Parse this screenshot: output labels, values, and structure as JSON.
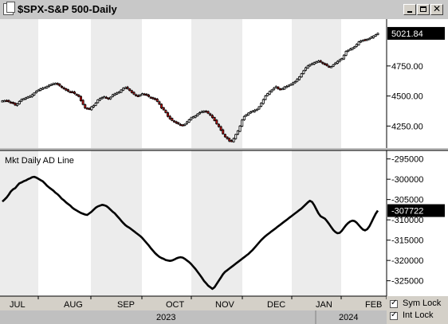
{
  "window": {
    "title": "$SPX-S&P 500-Daily",
    "buttons": [
      "minimize",
      "maximize",
      "close"
    ]
  },
  "chart_data": [
    {
      "type": "candlestick",
      "title": "$SPX-S&P 500-Daily",
      "last_value": "5021.84",
      "ytick_labels": [
        "4250.00",
        "4500.00",
        "4750.00"
      ],
      "ylim": [
        4080,
        5100
      ],
      "grid": false,
      "close_series": [
        4460,
        4462,
        4458,
        4452,
        4448,
        4438,
        4425,
        4435,
        4455,
        4470,
        4478,
        4485,
        4492,
        4498,
        4510,
        4525,
        4540,
        4550,
        4560,
        4565,
        4572,
        4580,
        4590,
        4596,
        4602,
        4606,
        4596,
        4585,
        4570,
        4560,
        4548,
        4540,
        4536,
        4530,
        4520,
        4510,
        4495,
        4460,
        4430,
        4400,
        4395,
        4390,
        4410,
        4420,
        4440,
        4468,
        4480,
        4488,
        4494,
        4485,
        4475,
        4490,
        4510,
        4518,
        4525,
        4535,
        4550,
        4565,
        4570,
        4562,
        4545,
        4528,
        4515,
        4505,
        4500,
        4510,
        4520,
        4515,
        4505,
        4495,
        4488,
        4478,
        4470,
        4455,
        4432,
        4400,
        4385,
        4362,
        4330,
        4310,
        4296,
        4286,
        4274,
        4268,
        4262,
        4255,
        4265,
        4285,
        4302,
        4318,
        4328,
        4336,
        4350,
        4362,
        4370,
        4375,
        4368,
        4356,
        4340,
        4320,
        4295,
        4268,
        4245,
        4215,
        4185,
        4160,
        4145,
        4125,
        4122,
        4145,
        4180,
        4210,
        4250,
        4300,
        4330,
        4345,
        4358,
        4368,
        4375,
        4382,
        4390,
        4410,
        4440,
        4470,
        4500,
        4520,
        4538,
        4550,
        4565,
        4578,
        4560,
        4558,
        4562,
        4575,
        4580,
        4590,
        4598,
        4610,
        4620,
        4640,
        4660,
        4685,
        4710,
        4735,
        4750,
        4762,
        4770,
        4778,
        4784,
        4790,
        4783,
        4770,
        4762,
        4752,
        4744,
        4745,
        4760,
        4775,
        4788,
        4800,
        4812,
        4840,
        4872,
        4880,
        4890,
        4900,
        4910,
        4930,
        4950,
        4958,
        4965,
        4968,
        4972,
        4979,
        4990,
        5000,
        5010,
        5021
      ],
      "down_days_sample": "red candles mark down closes"
    },
    {
      "type": "line",
      "title": "Mkt Daily AD Line",
      "last_value": "-307722",
      "ytick_labels": [
        "-295000",
        "-300000",
        "-305000",
        "-310000",
        "-315000",
        "-320000",
        "-325000"
      ],
      "ylim": [
        -328400,
        -293500
      ],
      "grid": false,
      "values": [
        -305500,
        -305000,
        -304500,
        -303800,
        -303000,
        -302500,
        -302200,
        -301600,
        -301000,
        -300800,
        -300500,
        -300300,
        -300000,
        -299800,
        -299500,
        -299400,
        -299600,
        -299900,
        -300200,
        -300500,
        -301000,
        -301600,
        -302000,
        -302400,
        -302800,
        -303300,
        -303700,
        -304200,
        -304800,
        -305200,
        -305700,
        -306100,
        -306500,
        -307000,
        -307400,
        -307700,
        -308000,
        -308300,
        -308500,
        -308700,
        -308800,
        -308400,
        -308000,
        -307500,
        -307000,
        -306700,
        -306500,
        -306300,
        -306400,
        -306600,
        -307000,
        -307500,
        -308000,
        -308400,
        -309000,
        -309600,
        -310200,
        -310800,
        -311300,
        -311700,
        -312000,
        -312400,
        -312800,
        -313200,
        -313600,
        -314000,
        -314500,
        -315100,
        -315700,
        -316300,
        -317000,
        -317600,
        -318200,
        -318700,
        -319100,
        -319400,
        -319600,
        -319900,
        -320000,
        -320100,
        -320000,
        -319800,
        -319500,
        -319300,
        -319200,
        -319300,
        -319600,
        -320000,
        -320400,
        -320900,
        -321500,
        -322100,
        -322800,
        -323500,
        -324200,
        -325000,
        -325600,
        -326200,
        -326600,
        -327000,
        -326600,
        -325800,
        -325000,
        -324200,
        -323400,
        -322800,
        -322400,
        -322000,
        -321600,
        -321200,
        -320800,
        -320400,
        -320000,
        -319600,
        -319200,
        -318800,
        -318400,
        -317900,
        -317400,
        -316800,
        -316200,
        -315600,
        -315000,
        -314500,
        -314000,
        -313600,
        -313200,
        -312800,
        -312400,
        -312000,
        -311600,
        -311200,
        -310800,
        -310400,
        -310000,
        -309600,
        -309200,
        -308800,
        -308400,
        -308000,
        -307600,
        -307200,
        -306700,
        -306200,
        -305700,
        -305300,
        -305600,
        -306400,
        -307400,
        -308400,
        -309100,
        -309400,
        -309700,
        -310300,
        -311000,
        -311800,
        -312500,
        -313000,
        -313300,
        -313200,
        -312700,
        -312000,
        -311300,
        -310800,
        -310400,
        -310200,
        -310300,
        -310700,
        -311300,
        -311900,
        -312400,
        -312600,
        -312300,
        -311600,
        -310600,
        -309500,
        -308500,
        -307722
      ]
    }
  ],
  "x_axis": {
    "months": [
      "JUL",
      "AUG",
      "SEP",
      "OCT",
      "NOV",
      "DEC",
      "JAN",
      "FEB"
    ],
    "years": [
      "2023",
      "2024"
    ]
  },
  "options": [
    {
      "label": "Sym Lock",
      "checked": true
    },
    {
      "label": "Int Lock",
      "checked": true
    }
  ],
  "colors": {
    "up_candle": "#ffffff",
    "down_candle": "#cc1111",
    "badge_bg": "#000000",
    "line": "#000000",
    "shade_band": "#e4e4e4"
  }
}
